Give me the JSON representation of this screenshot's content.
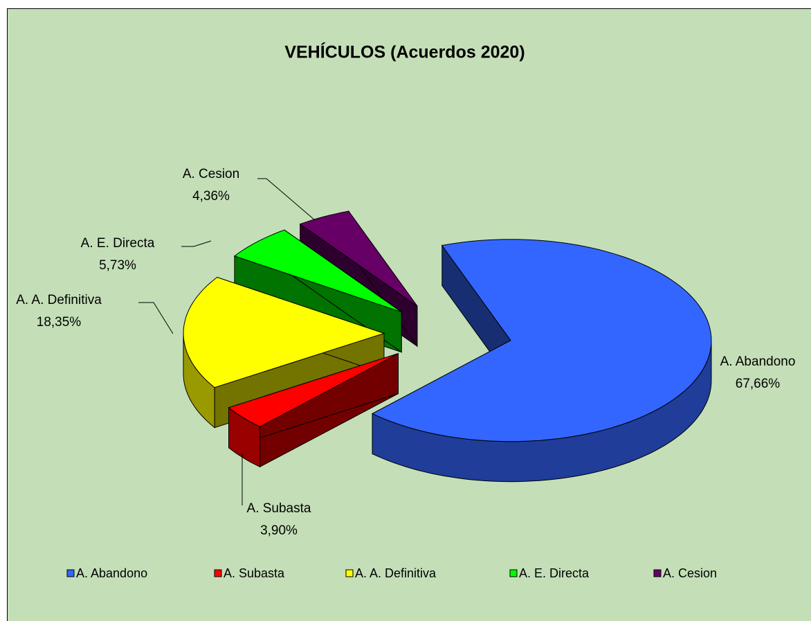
{
  "chart_data": {
    "type": "pie",
    "title": "VEHÍCULOS (Acuerdos 2020)",
    "categories": [
      "A. Abandono",
      "A. Subasta",
      "A. A. Definitiva",
      "A. E. Directa",
      "A. Cesion"
    ],
    "values": [
      67.66,
      3.9,
      18.35,
      5.73,
      4.36
    ],
    "value_labels": [
      "67,66%",
      "3,90%",
      "18,35%",
      "5,73%",
      "4,36%"
    ],
    "colors": [
      "#3366ff",
      "#ff0000",
      "#ffff00",
      "#00ff00",
      "#660066"
    ],
    "legend": "bottom"
  }
}
